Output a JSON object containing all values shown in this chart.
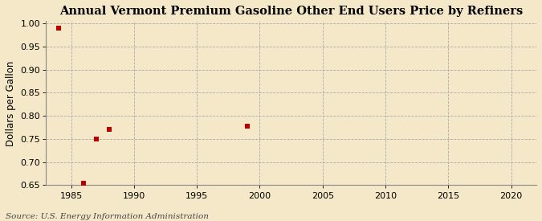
{
  "title": "Annual Vermont Premium Gasoline Other End Users Price by Refiners",
  "ylabel": "Dollars per Gallon",
  "source_text": "Source: U.S. Energy Information Administration",
  "x_data": [
    1984,
    1986,
    1987,
    1988,
    1999
  ],
  "y_data": [
    0.99,
    0.655,
    0.75,
    0.77,
    0.778
  ],
  "marker": "s",
  "marker_color": "#bb0000",
  "marker_size": 16,
  "xlim": [
    1983,
    2022
  ],
  "ylim": [
    0.65,
    1.005
  ],
  "xticks": [
    1985,
    1990,
    1995,
    2000,
    2005,
    2010,
    2015,
    2020
  ],
  "yticks": [
    0.65,
    0.7,
    0.75,
    0.8,
    0.85,
    0.9,
    0.95,
    1.0
  ],
  "background_color": "#f5e8c8",
  "plot_bg_color": "#f5e8c8",
  "grid_color": "#aaaaaa",
  "spine_color": "#888888",
  "title_fontsize": 10.5,
  "label_fontsize": 8.5,
  "tick_fontsize": 8,
  "source_fontsize": 7.5
}
